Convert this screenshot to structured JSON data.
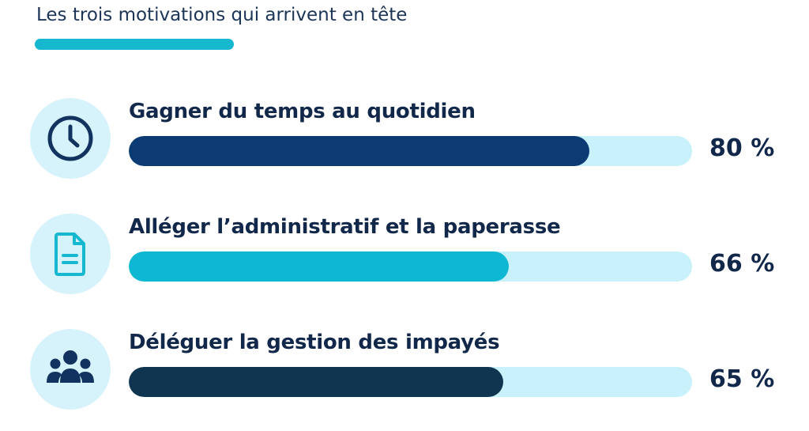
{
  "title": "Les trois motivations qui arrivent en tête",
  "colors": {
    "accent": "#16b8d0",
    "track": "#c8f1fb",
    "icon_bg": "#d6f3fb",
    "text": "#12284a"
  },
  "chart_data": {
    "type": "bar",
    "orientation": "horizontal",
    "title": "Les trois motivations qui arrivent en tête",
    "categories": [
      "Gagner du temps au quotidien",
      "Alléger l’administratif et la paperasse",
      "Déléguer la gestion des impayés"
    ],
    "values": [
      80,
      66,
      65
    ],
    "value_labels": [
      "80 %",
      "66 %",
      "65 %"
    ],
    "xlim": [
      0,
      100
    ],
    "grid": false,
    "legend": "none",
    "bar_colors": [
      "#0c3b73",
      "#0fb8d2",
      "#0f3550"
    ],
    "icons": [
      "clock-icon",
      "document-icon",
      "group-icon"
    ]
  }
}
